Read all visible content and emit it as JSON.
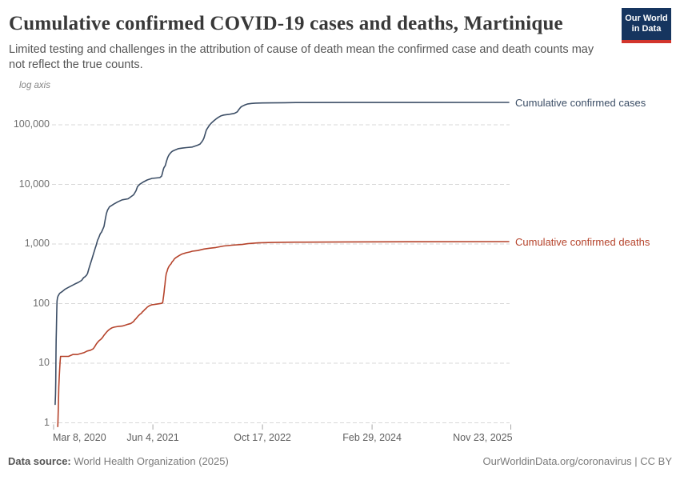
{
  "header": {
    "title": "Cumulative confirmed COVID-19 cases and deaths, Martinique",
    "subtitle": "Limited testing and challenges in the attribution of cause of death mean the confirmed case and death counts may not reflect the true counts.",
    "logo": {
      "line1": "Our World",
      "line2": "in Data"
    }
  },
  "colors": {
    "cases_line": "#3C4E66",
    "deaths_line": "#B5432B",
    "gridline": "#D8D8D8",
    "tick_mark": "#A8A8A8",
    "logo_bg": "#16355F",
    "logo_accent": "#D2352C"
  },
  "chart_data": {
    "type": "line",
    "title": "Cumulative confirmed COVID-19 cases and deaths, Martinique",
    "y_scale": "log10",
    "y_axis_note": "log axis",
    "grid": true,
    "legend_position": "right-of-line-end",
    "x_unit": "days since 2020-01-01",
    "ylim": [
      1,
      400000
    ],
    "y_ticks": [
      {
        "value": 1,
        "label": "1"
      },
      {
        "value": 10,
        "label": "10"
      },
      {
        "value": 100,
        "label": "100"
      },
      {
        "value": 1000,
        "label": "1,000"
      },
      {
        "value": 10000,
        "label": "10,000"
      },
      {
        "value": 100000,
        "label": "100,000"
      }
    ],
    "x_ticks": [
      {
        "day": 67,
        "label": "Mar 8, 2020"
      },
      {
        "day": 520,
        "label": "Jun 4, 2021"
      },
      {
        "day": 1020,
        "label": "Oct 17, 2022"
      },
      {
        "day": 1520,
        "label": "Feb 29, 2024"
      },
      {
        "day": 2153,
        "label": "Nov 23, 2025"
      }
    ],
    "series": [
      {
        "name": "Cumulative confirmed cases",
        "color": "#3C4E66",
        "points": [
          [
            74,
            2
          ],
          [
            76,
            3
          ],
          [
            77,
            5
          ],
          [
            78,
            15
          ],
          [
            79,
            25
          ],
          [
            80,
            37
          ],
          [
            81,
            60
          ],
          [
            82,
            90
          ],
          [
            83,
            110
          ],
          [
            85,
            126
          ],
          [
            88,
            135
          ],
          [
            95,
            149
          ],
          [
            105,
            158
          ],
          [
            120,
            175
          ],
          [
            135,
            187
          ],
          [
            150,
            200
          ],
          [
            165,
            214
          ],
          [
            180,
            227
          ],
          [
            195,
            245
          ],
          [
            204,
            272
          ],
          [
            210,
            281
          ],
          [
            217,
            299
          ],
          [
            222,
            320
          ],
          [
            228,
            385
          ],
          [
            235,
            464
          ],
          [
            242,
            560
          ],
          [
            250,
            700
          ],
          [
            257,
            850
          ],
          [
            261,
            940
          ],
          [
            268,
            1160
          ],
          [
            272,
            1240
          ],
          [
            280,
            1480
          ],
          [
            286,
            1590
          ],
          [
            294,
            1860
          ],
          [
            297,
            1970
          ],
          [
            303,
            2600
          ],
          [
            308,
            3240
          ],
          [
            313,
            3700
          ],
          [
            322,
            4200
          ],
          [
            335,
            4500
          ],
          [
            342,
            4680
          ],
          [
            360,
            5100
          ],
          [
            380,
            5500
          ],
          [
            407,
            5740
          ],
          [
            425,
            6400
          ],
          [
            432,
            6700
          ],
          [
            443,
            7800
          ],
          [
            450,
            9200
          ],
          [
            461,
            10100
          ],
          [
            479,
            11100
          ],
          [
            495,
            11900
          ],
          [
            516,
            12600
          ],
          [
            552,
            13000
          ],
          [
            560,
            13800
          ],
          [
            563,
            15200
          ],
          [
            567,
            17500
          ],
          [
            570,
            18900
          ],
          [
            574,
            20000
          ],
          [
            577,
            20800
          ],
          [
            582,
            24500
          ],
          [
            588,
            28400
          ],
          [
            593,
            31000
          ],
          [
            599,
            33200
          ],
          [
            606,
            35300
          ],
          [
            612,
            36500
          ],
          [
            620,
            37700
          ],
          [
            637,
            39800
          ],
          [
            655,
            40700
          ],
          [
            673,
            41400
          ],
          [
            700,
            42400
          ],
          [
            724,
            45400
          ],
          [
            735,
            47500
          ],
          [
            742,
            51000
          ],
          [
            748,
            55000
          ],
          [
            753,
            59800
          ],
          [
            758,
            69000
          ],
          [
            764,
            81500
          ],
          [
            771,
            90000
          ],
          [
            778,
            98500
          ],
          [
            787,
            107000
          ],
          [
            796,
            115000
          ],
          [
            807,
            124000
          ],
          [
            818,
            133000
          ],
          [
            830,
            141000
          ],
          [
            843,
            146000
          ],
          [
            856,
            148000
          ],
          [
            869,
            150000
          ],
          [
            880,
            152500
          ],
          [
            891,
            155000
          ],
          [
            897,
            159000
          ],
          [
            905,
            165000
          ],
          [
            912,
            180000
          ],
          [
            920,
            196000
          ],
          [
            927,
            205000
          ],
          [
            940,
            216000
          ],
          [
            953,
            224000
          ],
          [
            970,
            228000
          ],
          [
            989,
            231000
          ],
          [
            1020,
            232500
          ],
          [
            1062,
            233500
          ],
          [
            1120,
            235000
          ],
          [
            1172,
            236000
          ],
          [
            1400,
            236600
          ],
          [
            1700,
            237000
          ],
          [
            2146,
            237400
          ]
        ]
      },
      {
        "name": "Cumulative confirmed deaths",
        "color": "#B5432B",
        "points": [
          [
            86,
            0.85
          ],
          [
            87,
            1
          ],
          [
            89,
            2
          ],
          [
            91,
            4
          ],
          [
            93,
            6
          ],
          [
            95,
            8
          ],
          [
            97,
            11
          ],
          [
            99,
            13
          ],
          [
            115,
            13
          ],
          [
            135,
            13
          ],
          [
            155,
            14
          ],
          [
            175,
            14
          ],
          [
            190,
            14.5
          ],
          [
            205,
            15
          ],
          [
            220,
            16
          ],
          [
            235,
            16.5
          ],
          [
            248,
            17.5
          ],
          [
            255,
            19
          ],
          [
            262,
            21
          ],
          [
            268,
            22.4
          ],
          [
            275,
            24
          ],
          [
            283,
            25.2
          ],
          [
            290,
            27
          ],
          [
            297,
            29.4
          ],
          [
            305,
            32
          ],
          [
            312,
            34.3
          ],
          [
            320,
            36.5
          ],
          [
            326,
            37.8
          ],
          [
            335,
            39.5
          ],
          [
            344,
            40.3
          ],
          [
            360,
            41.3
          ],
          [
            380,
            42
          ],
          [
            395,
            43.5
          ],
          [
            407,
            45
          ],
          [
            420,
            46.5
          ],
          [
            425,
            48
          ],
          [
            432,
            50
          ],
          [
            436,
            52.7
          ],
          [
            443,
            56
          ],
          [
            450,
            60
          ],
          [
            455,
            63
          ],
          [
            461,
            66
          ],
          [
            468,
            69
          ],
          [
            472,
            72.3
          ],
          [
            478,
            76
          ],
          [
            483,
            79.4
          ],
          [
            489,
            83
          ],
          [
            494,
            87
          ],
          [
            500,
            90
          ],
          [
            505,
            92.5
          ],
          [
            516,
            95.7
          ],
          [
            530,
            97
          ],
          [
            545,
            99
          ],
          [
            560,
            101
          ],
          [
            565,
            104
          ],
          [
            567,
            120
          ],
          [
            569,
            134
          ],
          [
            571,
            155
          ],
          [
            573,
            182
          ],
          [
            575,
            210
          ],
          [
            577,
            247
          ],
          [
            579,
            280
          ],
          [
            581,
            318
          ],
          [
            585,
            350
          ],
          [
            588,
            383
          ],
          [
            592,
            410
          ],
          [
            596,
            436
          ],
          [
            603,
            465
          ],
          [
            607,
            497
          ],
          [
            614,
            530
          ],
          [
            618,
            561
          ],
          [
            625,
            590
          ],
          [
            632,
            614
          ],
          [
            640,
            640
          ],
          [
            650,
            671
          ],
          [
            662,
            695
          ],
          [
            673,
            713
          ],
          [
            688,
            735
          ],
          [
            700,
            758
          ],
          [
            724,
            775
          ],
          [
            753,
            823
          ],
          [
            778,
            848
          ],
          [
            807,
            874
          ],
          [
            843,
            927
          ],
          [
            880,
            955
          ],
          [
            927,
            983
          ],
          [
            953,
            1013
          ],
          [
            1000,
            1044
          ],
          [
            1062,
            1060
          ],
          [
            1120,
            1070
          ],
          [
            1172,
            1075
          ],
          [
            1400,
            1085
          ],
          [
            1700,
            1092
          ],
          [
            2146,
            1096
          ]
        ]
      }
    ]
  },
  "footer": {
    "source_label": "Data source:",
    "source_value": " World Health Organization (2025)",
    "credit": "OurWorldinData.org/coronavirus | CC BY"
  }
}
